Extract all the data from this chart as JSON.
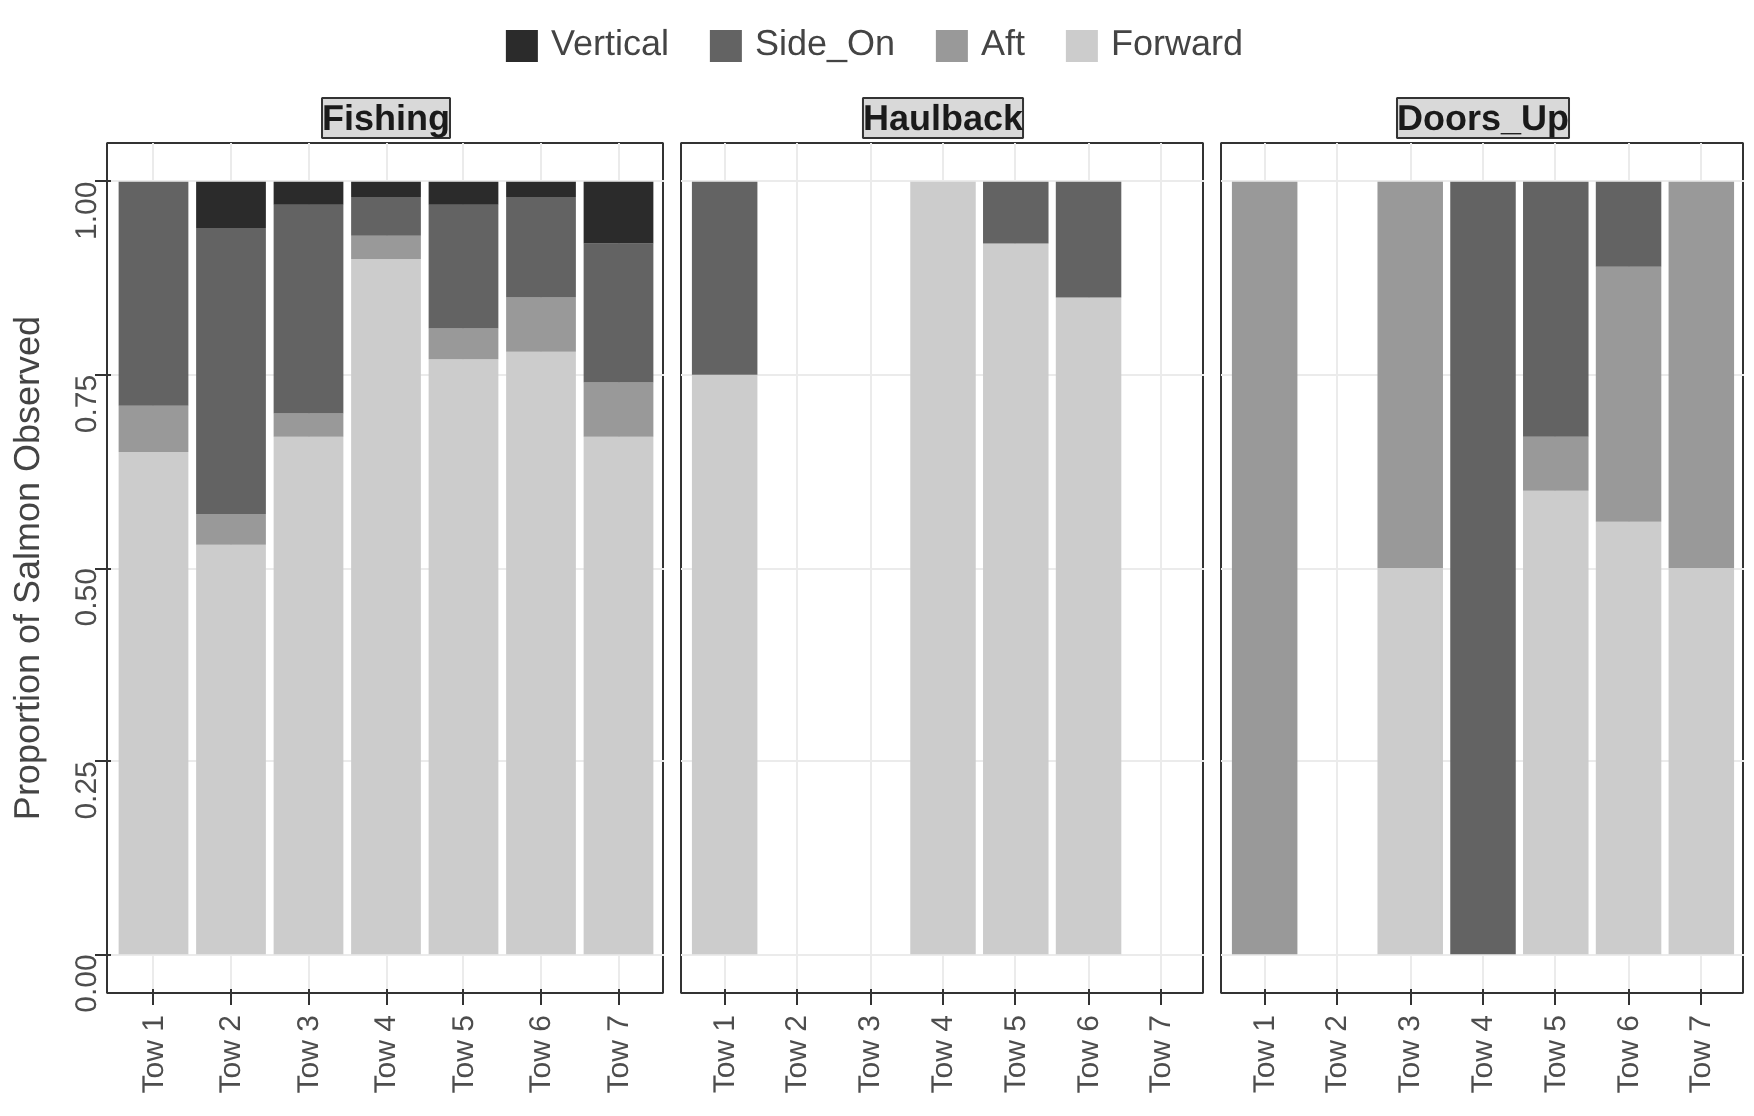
{
  "chart_data": [
    {
      "type": "bar",
      "title": "Fishing",
      "ylabel": "Proportion of Salmon Observed",
      "stacked": true,
      "legend": "top",
      "grid": true,
      "categories": [
        "Tow 1",
        "Tow 2",
        "Tow 3",
        "Tow 4",
        "Tow 5",
        "Tow 6",
        "Tow 7"
      ],
      "ylim": [
        -0.05,
        1.05
      ],
      "yticks": [
        {
          "value": 0,
          "label": "0.00"
        },
        {
          "value": 0.25,
          "label": "0.25"
        },
        {
          "value": 0.5,
          "label": "0.50"
        },
        {
          "value": 0.75,
          "label": "0.75"
        },
        {
          "value": 1,
          "label": "1.00"
        }
      ],
      "series": [
        {
          "name": "Forward",
          "color": "#cccccc",
          "values": [
            0.65,
            0.53,
            0.67,
            0.9,
            0.77,
            0.78,
            0.67
          ]
        },
        {
          "name": "Aft",
          "color": "#999999",
          "values": [
            0.06,
            0.04,
            0.03,
            0.03,
            0.04,
            0.07,
            0.07
          ]
        },
        {
          "name": "Side_On",
          "color": "#636363",
          "values": [
            0.29,
            0.37,
            0.27,
            0.05,
            0.16,
            0.13,
            0.18
          ]
        },
        {
          "name": "Vertical",
          "color": "#2b2b2b",
          "values": [
            null,
            0.06,
            0.03,
            0.02,
            0.03,
            0.02,
            0.08
          ]
        }
      ]
    },
    {
      "type": "bar",
      "title": "Haulback",
      "stacked": true,
      "grid": true,
      "tick_labels": "x",
      "categories": [
        "Tow 1",
        "Tow 2",
        "Tow 3",
        "Tow 4",
        "Tow 5",
        "Tow 6",
        "Tow 7"
      ],
      "ylim": [
        -0.05,
        1.05
      ],
      "yticks": [
        0,
        0.25,
        0.5,
        0.75,
        1
      ],
      "series": [
        {
          "color": "#cccccc",
          "values": [
            0.75,
            null,
            null,
            1,
            0.92,
            0.85,
            null
          ]
        },
        {
          "color": "#636363",
          "values": [
            0.25,
            null,
            null,
            null,
            0.08,
            0.15,
            null
          ]
        }
      ]
    },
    {
      "type": "bar",
      "title": "Doors_Up",
      "stacked": true,
      "grid": true,
      "tick_labels": "x",
      "categories": [
        "Tow 1",
        "Tow 2",
        "Tow 3",
        "Tow 4",
        "Tow 5",
        "Tow 6",
        "Tow 7"
      ],
      "ylim": [
        -0.05,
        1.05
      ],
      "yticks": [
        0,
        0.25,
        0.5,
        0.75,
        1
      ],
      "series": [
        {
          "color": "#cccccc",
          "values": [
            null,
            null,
            0.5,
            null,
            0.6,
            0.56,
            0.5
          ]
        },
        {
          "color": "#999999",
          "values": [
            1,
            null,
            0.5,
            null,
            0.07,
            0.33,
            0.5
          ]
        },
        {
          "color": "#636363",
          "values": [
            null,
            null,
            null,
            1,
            0.33,
            0.11,
            null
          ]
        }
      ]
    }
  ]
}
